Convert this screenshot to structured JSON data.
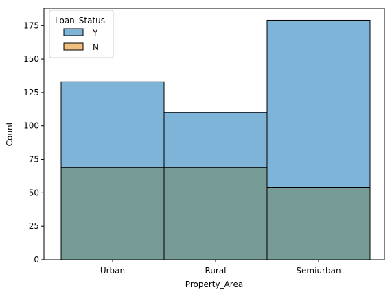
{
  "chart_data": {
    "type": "bar",
    "title": "",
    "xlabel": "Property_Area",
    "ylabel": "Count",
    "categories": [
      "Urban",
      "Rural",
      "Semiurban"
    ],
    "series": [
      {
        "name": "Y",
        "values": [
          133,
          110,
          179
        ],
        "color": "#6baed6"
      },
      {
        "name": "N",
        "values": [
          69,
          69,
          54
        ],
        "color": "#e6a756"
      }
    ],
    "ylim": [
      0,
      187.95
    ],
    "yticks": [
      0,
      25,
      50,
      75,
      100,
      125,
      150,
      175
    ],
    "grid": false,
    "legend": {
      "title": "Loan_Status",
      "placement": "top-left"
    },
    "bar_colors": {
      "Y": "#7fb4d9",
      "N_overlap": "#779c97"
    }
  }
}
